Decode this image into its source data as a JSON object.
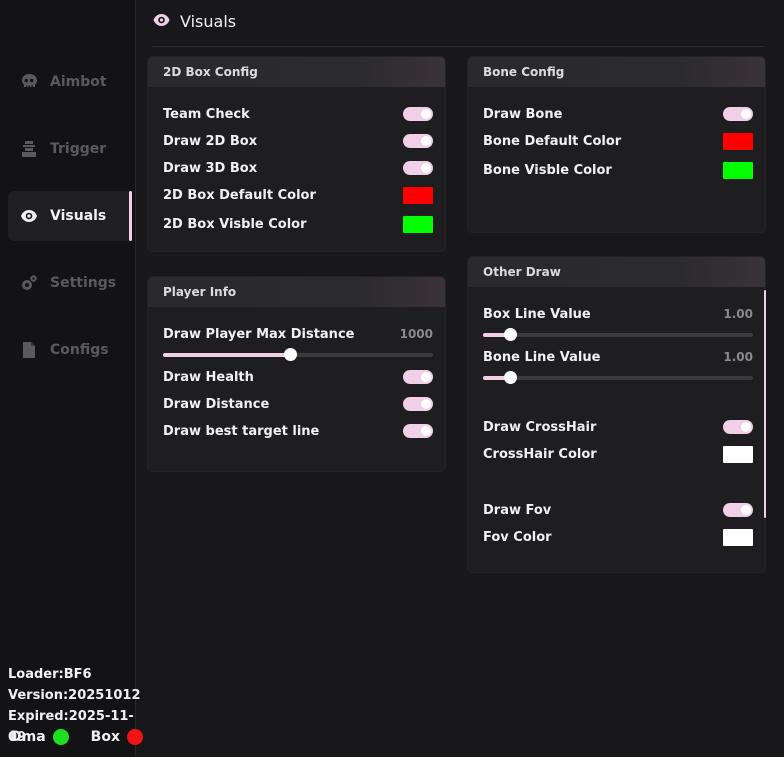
{
  "sidebar": {
    "items": [
      {
        "label": "Aimbot",
        "icon": "skull-icon"
      },
      {
        "label": "Trigger",
        "icon": "trigger-icon"
      },
      {
        "label": "Visuals",
        "icon": "eye-icon"
      },
      {
        "label": "Settings",
        "icon": "gears-icon"
      },
      {
        "label": "Configs",
        "icon": "file-icon"
      }
    ],
    "active": "Visuals",
    "loader": "Loader:BF6",
    "version": "Version:20251012",
    "expired": "Expired:2025-11-09",
    "dma_label": "Dma",
    "dma_color": "#1fe01f",
    "box_label": "Box",
    "box_color": "#f01414"
  },
  "header": {
    "title": "Visuals",
    "icon": "eye-icon"
  },
  "box_config": {
    "title": "2D Box Config",
    "team_check": "Team Check",
    "draw_2d_box": "Draw 2D Box",
    "draw_3d_box": "Draw 3D Box",
    "default_color_label": "2D Box Default Color",
    "default_color": "#ff0000",
    "visible_color_label": "2D Box Visble Color",
    "visible_color": "#00ff00"
  },
  "player_info": {
    "title": "Player Info",
    "max_distance_label": "Draw Player Max Distance",
    "max_distance_value": "1000",
    "max_distance_fraction": 0.47,
    "draw_health": "Draw Health",
    "draw_distance": "Draw Distance",
    "draw_target_line": "Draw best target line"
  },
  "bone_config": {
    "title": "Bone Config",
    "draw_bone": "Draw Bone",
    "default_color_label": "Bone Default Color",
    "default_color": "#ff0000",
    "visible_color_label": "Bone Visble Color",
    "visible_color": "#00ff00"
  },
  "other_draw": {
    "title": "Other Draw",
    "box_line_label": "Box Line Value",
    "box_line_value": "1.00",
    "box_line_fraction": 0.1,
    "bone_line_label": "Bone Line Value",
    "bone_line_value": "1.00",
    "bone_line_fraction": 0.1,
    "draw_crosshair": "Draw CrossHair",
    "crosshair_color_label": "CrossHair Color",
    "crosshair_color": "#ffffff",
    "draw_fov": "Draw Fov",
    "fov_color_label": "Fov Color",
    "fov_color": "#ffffff"
  },
  "accent_color": "#f1cfe6"
}
